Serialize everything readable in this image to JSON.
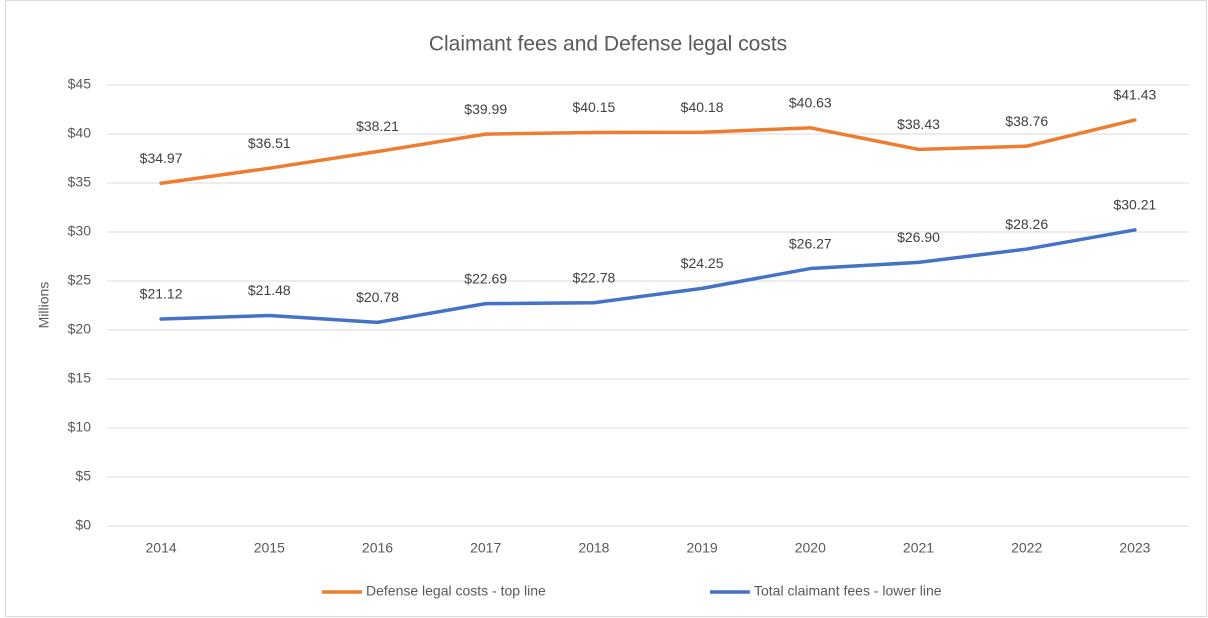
{
  "chart_data": {
    "type": "line",
    "title": "Claimant fees and Defense legal costs",
    "y_label": "Millions",
    "categories": [
      "2014",
      "2015",
      "2016",
      "2017",
      "2018",
      "2019",
      "2020",
      "2021",
      "2022",
      "2023"
    ],
    "series": [
      {
        "name": "Defense legal costs - top line",
        "color": "#ed7d31",
        "values": [
          34.97,
          36.51,
          38.21,
          39.99,
          40.15,
          40.18,
          40.63,
          38.43,
          38.76,
          41.43
        ],
        "value_labels": [
          "$34.97",
          "$36.51",
          "$38.21",
          "$39.99",
          "$40.15",
          "$40.18",
          "$40.63",
          "$38.43",
          "$38.76",
          "$41.43"
        ]
      },
      {
        "name": "Total claimant fees - lower line",
        "color": "#4472c4",
        "values": [
          21.12,
          21.48,
          20.78,
          22.69,
          22.78,
          24.25,
          26.27,
          26.9,
          28.26,
          30.21
        ],
        "value_labels": [
          "$21.12",
          "$21.48",
          "$20.78",
          "$22.69",
          "$22.78",
          "$24.25",
          "$26.27",
          "$26.90",
          "$28.26",
          "$30.21"
        ]
      }
    ],
    "ylim": [
      0,
      45
    ],
    "yticks": [
      {
        "value": 0,
        "label": "$0"
      },
      {
        "value": 5,
        "label": "$5"
      },
      {
        "value": 10,
        "label": "$10"
      },
      {
        "value": 15,
        "label": "$15"
      },
      {
        "value": 20,
        "label": "$20"
      },
      {
        "value": 25,
        "label": "$25"
      },
      {
        "value": 30,
        "label": "$30"
      },
      {
        "value": 35,
        "label": "$35"
      },
      {
        "value": 40,
        "label": "$40"
      },
      {
        "value": 45,
        "label": "$45"
      }
    ],
    "grid": true,
    "legend": "bottom"
  }
}
